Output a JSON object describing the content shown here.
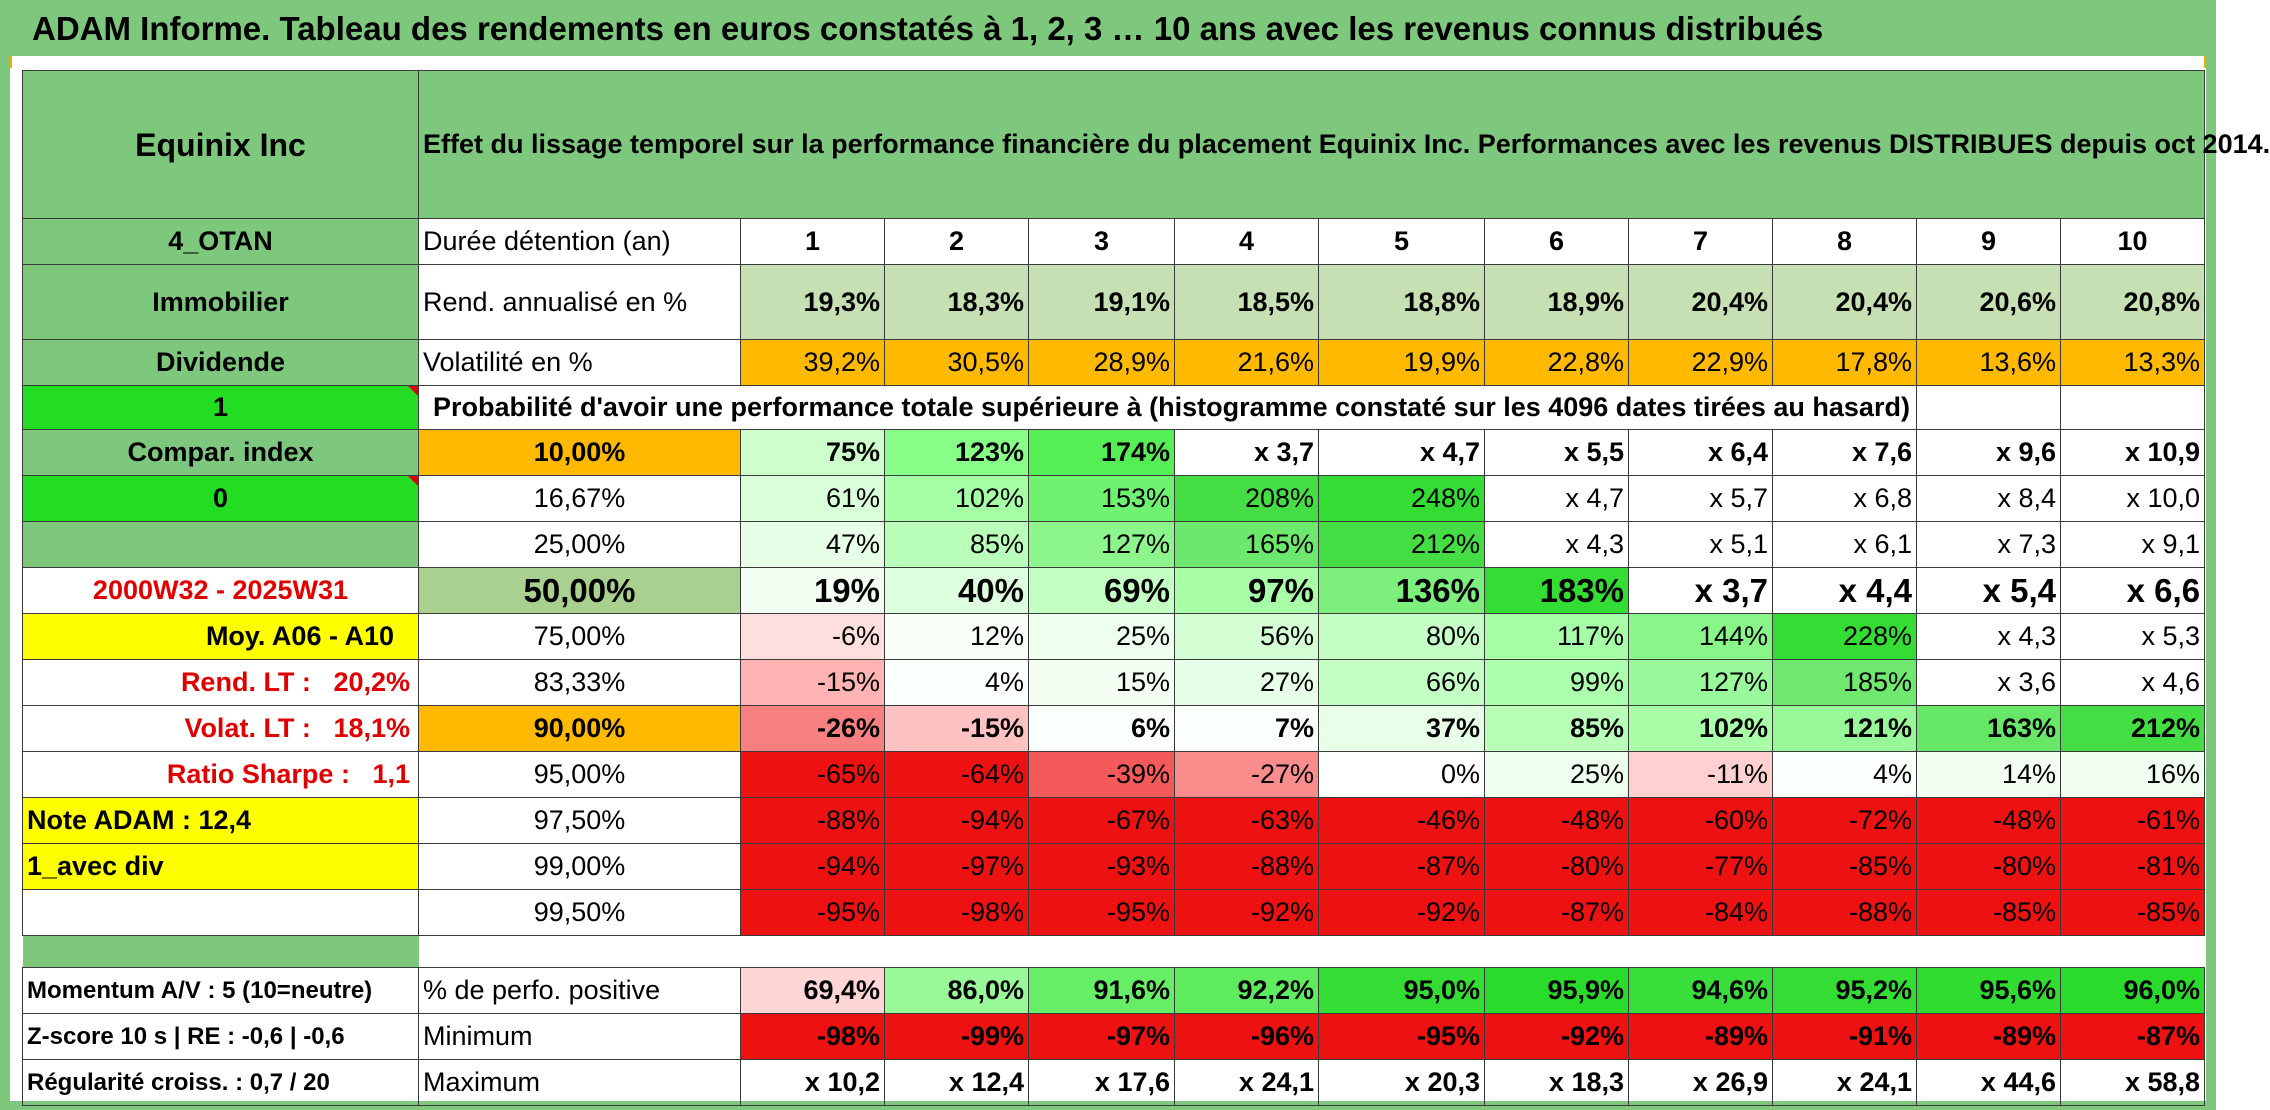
{
  "title": "ADAM Informe. Tableau des rendements en euros constatés à 1, 2, 3 … 10 ans avec les revenus connus distribués",
  "colors": {
    "header_green": "#7ec87e",
    "bright_green": "#22dd22",
    "orange": "#ffb900",
    "yellow": "#ffff00",
    "red": "#ff0000",
    "pale_green": "#c6e0b4"
  },
  "left": {
    "company": "Equinix Inc",
    "code": "4_OTAN",
    "sector": "Immobilier",
    "type": "Dividende",
    "value1": "1",
    "compar_index": "Compar. index",
    "value0": "0",
    "period": "2000W32 - 2025W31",
    "moy": "Moy. A06 - A10",
    "rend_label": "Rend. LT :",
    "rend_value": "20,2%",
    "volat_label": "Volat. LT :",
    "volat_value": "18,1%",
    "sharpe_label": "Ratio Sharpe :",
    "sharpe_value": "1,1",
    "note": "Note ADAM : 12,4",
    "div": "1_avec div",
    "momentum": "Momentum A/V : 5 (10=neutre)",
    "zscore": "Z-score 10 s | RE : -0,6 | -0,6",
    "regularite": "Régularité croiss. : 0,7 / 20"
  },
  "header_text": "Effet du lissage temporel sur la performance financière du placement Equinix Inc. Performances avec les revenus DISTRIBUES depuis oct 2014.",
  "duree_label": "Durée détention (an)",
  "years": [
    "1",
    "2",
    "3",
    "4",
    "5",
    "6",
    "7",
    "8",
    "9",
    "10"
  ],
  "rend_label": "Rend. annualisé en %",
  "rend": [
    "19,3%",
    "18,3%",
    "19,1%",
    "18,5%",
    "18,8%",
    "18,9%",
    "20,4%",
    "20,4%",
    "20,6%",
    "20,8%"
  ],
  "vol_label": "Volatilité en %",
  "vol": [
    "39,2%",
    "30,5%",
    "28,9%",
    "21,6%",
    "19,9%",
    "22,8%",
    "22,9%",
    "17,8%",
    "13,6%",
    "13,3%"
  ],
  "proba_text": "Probabilité d'avoir une performance totale supérieure à (histogramme constaté sur les 4096 dates tirées au hasard)",
  "pct_rows": [
    {
      "label": "10,00%",
      "values": [
        "75%",
        "123%",
        "174%",
        "x 3,7",
        "x 4,7",
        "x 5,5",
        "x 6,4",
        "x 7,6",
        "x 9,6",
        "x 10,9"
      ]
    },
    {
      "label": "16,67%",
      "values": [
        "61%",
        "102%",
        "153%",
        "208%",
        "248%",
        "x 4,7",
        "x 5,7",
        "x 6,8",
        "x 8,4",
        "x 10,0"
      ]
    },
    {
      "label": "25,00%",
      "values": [
        "47%",
        "85%",
        "127%",
        "165%",
        "212%",
        "x 4,3",
        "x 5,1",
        "x 6,1",
        "x 7,3",
        "x 9,1"
      ]
    },
    {
      "label": "50,00%",
      "values": [
        "19%",
        "40%",
        "69%",
        "97%",
        "136%",
        "183%",
        "x 3,7",
        "x 4,4",
        "x 5,4",
        "x 6,6"
      ]
    },
    {
      "label": "75,00%",
      "values": [
        "-6%",
        "12%",
        "25%",
        "56%",
        "80%",
        "117%",
        "144%",
        "228%",
        "x 4,3",
        "x 5,3"
      ]
    },
    {
      "label": "83,33%",
      "values": [
        "-15%",
        "4%",
        "15%",
        "27%",
        "66%",
        "99%",
        "127%",
        "185%",
        "x 3,6",
        "x 4,6"
      ]
    },
    {
      "label": "90,00%",
      "values": [
        "-26%",
        "-15%",
        "6%",
        "7%",
        "37%",
        "85%",
        "102%",
        "121%",
        "163%",
        "212%"
      ]
    },
    {
      "label": "95,00%",
      "values": [
        "-65%",
        "-64%",
        "-39%",
        "-27%",
        "0%",
        "25%",
        "-11%",
        "4%",
        "14%",
        "16%"
      ]
    },
    {
      "label": "97,50%",
      "values": [
        "-88%",
        "-94%",
        "-67%",
        "-63%",
        "-46%",
        "-48%",
        "-60%",
        "-72%",
        "-48%",
        "-61%"
      ]
    },
    {
      "label": "99,00%",
      "values": [
        "-94%",
        "-97%",
        "-93%",
        "-88%",
        "-87%",
        "-80%",
        "-77%",
        "-85%",
        "-80%",
        "-81%"
      ]
    },
    {
      "label": "99,50%",
      "values": [
        "-95%",
        "-98%",
        "-95%",
        "-92%",
        "-92%",
        "-87%",
        "-84%",
        "-88%",
        "-85%",
        "-85%"
      ]
    }
  ],
  "pos_label": "% de perfo. positive",
  "pos": [
    "69,4%",
    "86,0%",
    "91,6%",
    "92,2%",
    "95,0%",
    "95,9%",
    "94,6%",
    "95,2%",
    "95,6%",
    "96,0%"
  ],
  "min_label": "Minimum",
  "min": [
    "-98%",
    "-99%",
    "-97%",
    "-96%",
    "-95%",
    "-92%",
    "-89%",
    "-91%",
    "-89%",
    "-87%"
  ],
  "max_label": "Maximum",
  "max": [
    "x 10,2",
    "x 12,4",
    "x 17,6",
    "x 24,1",
    "x 20,3",
    "x 18,3",
    "x 26,9",
    "x 24,1",
    "x 44,6",
    "x 58,8"
  ]
}
